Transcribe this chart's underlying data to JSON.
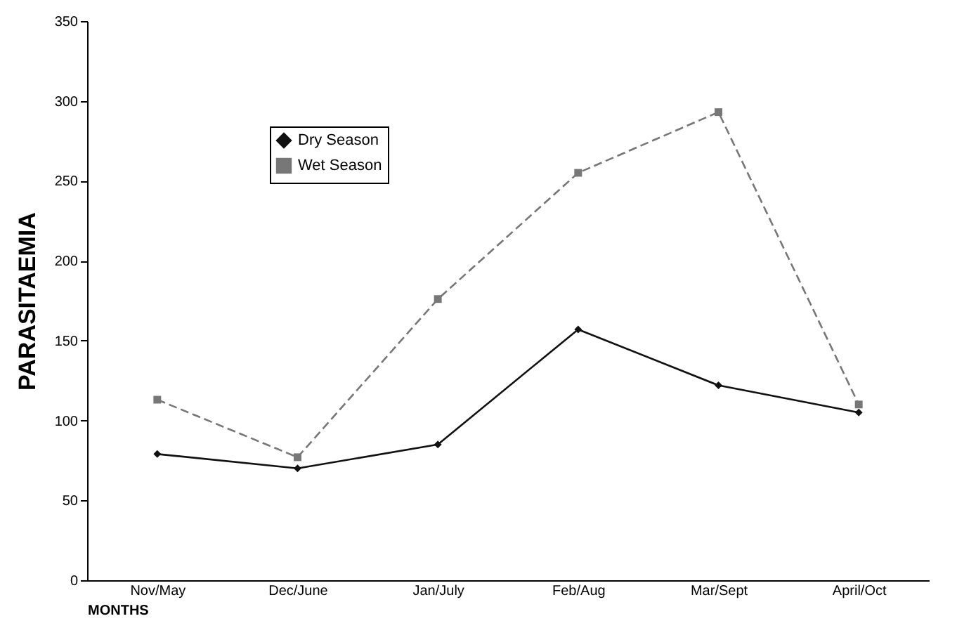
{
  "chart_data": {
    "type": "line",
    "xlabel": "MONTHS",
    "ylabel": "PARASITAEMIA",
    "categories": [
      "Nov/May",
      "Dec/June",
      "Jan/July",
      "Feb/Aug",
      "Mar/Sept",
      "April/Oct"
    ],
    "series": [
      {
        "name": "Dry Season",
        "color": "#111111",
        "marker": "diamond",
        "line_style": "solid",
        "values": [
          79,
          70,
          85,
          157,
          122,
          105
        ]
      },
      {
        "name": "Wet Season",
        "color": "#777777",
        "marker": "square",
        "line_style": "dashed",
        "values": [
          113,
          77,
          176,
          255,
          293,
          110
        ]
      }
    ],
    "ylim": [
      0,
      350
    ],
    "yticks": [
      0,
      50,
      100,
      150,
      200,
      250,
      300,
      350
    ],
    "grid": false,
    "legend": "top left"
  }
}
